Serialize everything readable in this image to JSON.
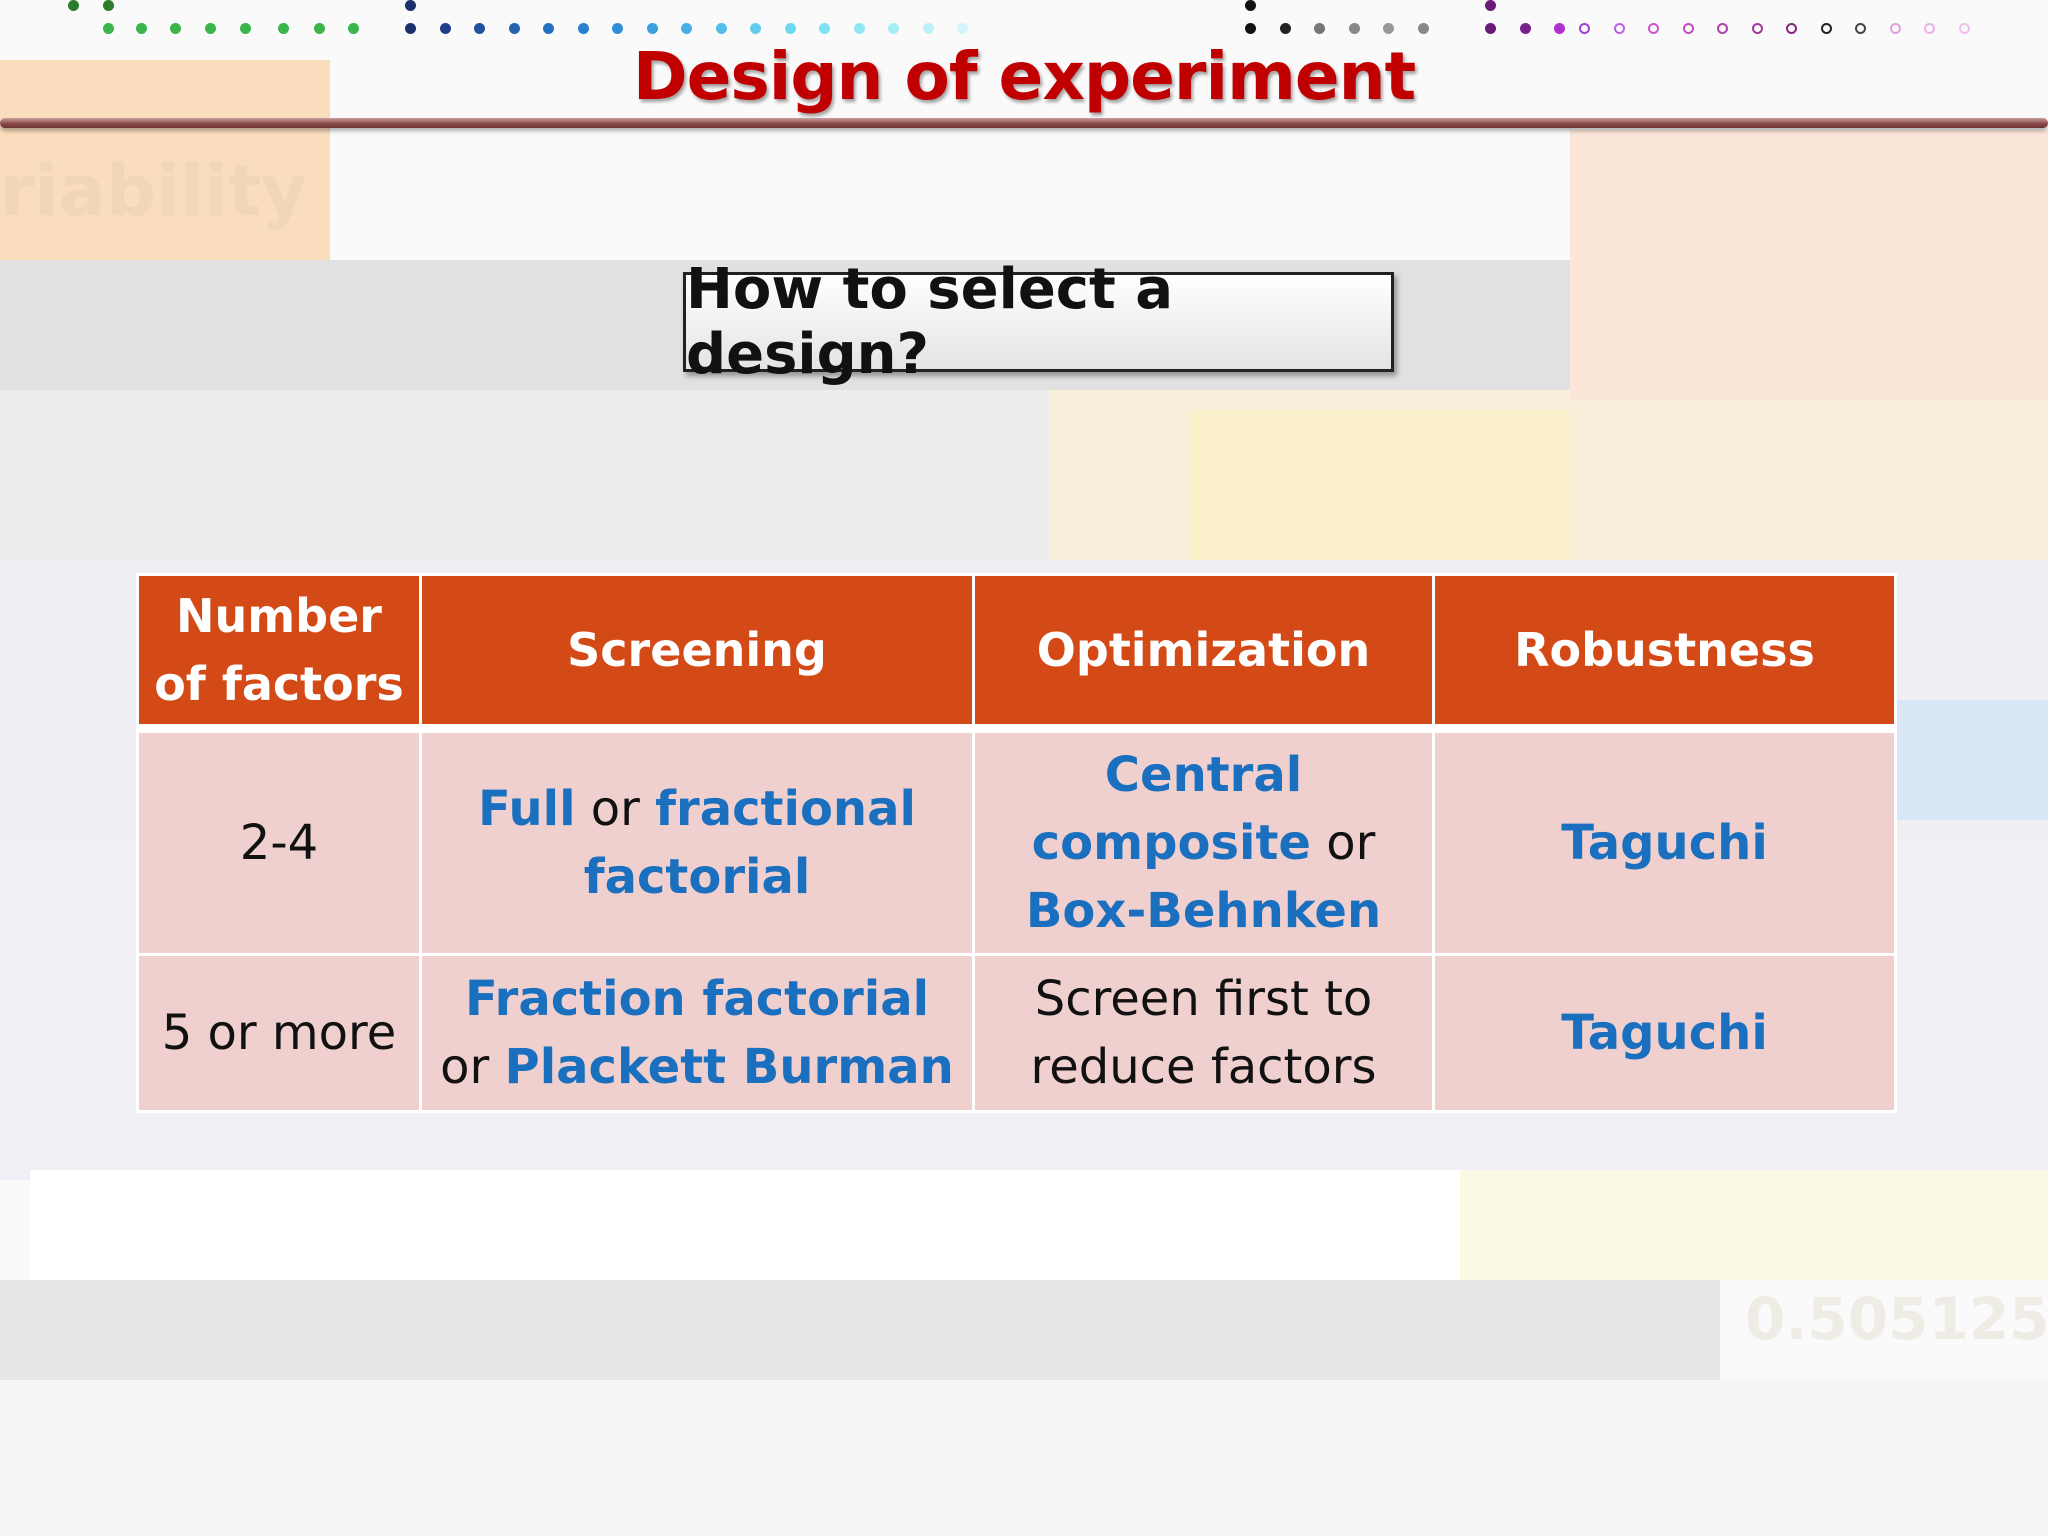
{
  "slide": {
    "title": "Design of experiment",
    "question": "How to select a design?",
    "colors": {
      "title": "#c00000",
      "table_header": "#d34a17",
      "table_cell": "#f0d0cf",
      "highlight_text": "#1a6fbe"
    }
  },
  "table": {
    "headers": [
      "Number of factors",
      "Screening",
      "Optimization",
      "Robustness"
    ],
    "rows": [
      {
        "factors": "2-4",
        "screening": {
          "a": "Full",
          "b": " or ",
          "c": "fractional factorial"
        },
        "optimization": {
          "a": "Central composite",
          "b": " or ",
          "c": "Box-Behnken"
        },
        "robustness": "Taguchi"
      },
      {
        "factors": "5 or more",
        "screening": {
          "a": "Fraction factorial",
          "b": " or ",
          "c": "Plackett Burman"
        },
        "optimization": {
          "text": "Screen first to reduce factors"
        },
        "robustness": "Taguchi"
      }
    ]
  }
}
